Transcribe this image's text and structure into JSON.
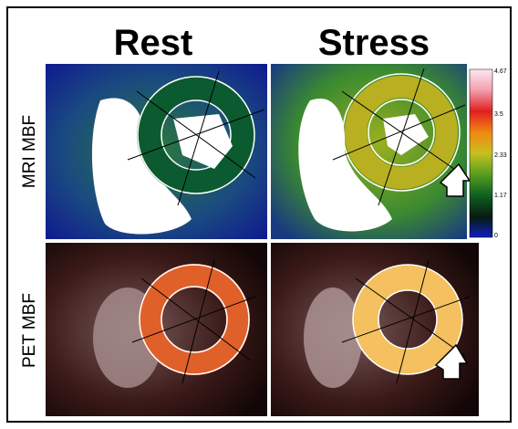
{
  "columns": [
    "Rest",
    "Stress"
  ],
  "rows": [
    "MRI MBF",
    "PET MBF"
  ],
  "colorbar": {
    "ticks": [
      "4.67",
      "3.5",
      "2.33",
      "1.17",
      "0"
    ]
  }
}
